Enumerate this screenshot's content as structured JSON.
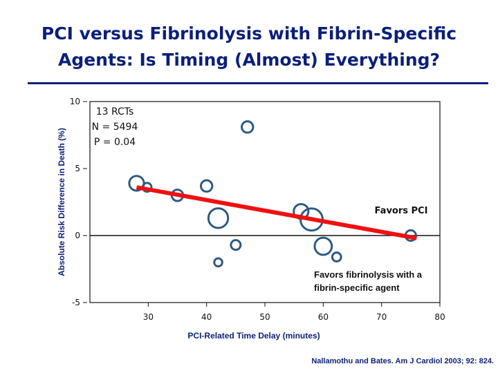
{
  "slide": {
    "title_line1": "PCI versus Fibrinolysis with Fibrin-Specific",
    "title_line2": "Agents: Is Timing (Almost) Everything?",
    "citation": "Nallamothu and Bates. Am J Cardiol 2003; 92: 824.",
    "title_color": "#0b1f7a"
  },
  "chart_data": {
    "type": "scatter",
    "xlabel": "PCI-Related Time Delay (minutes)",
    "ylabel": "Absolute Risk Difference in Death (%)",
    "xlim": [
      20,
      80
    ],
    "ylim": [
      -5,
      10
    ],
    "x_ticks": [
      30,
      40,
      50,
      60,
      70,
      80
    ],
    "y_ticks": [
      10,
      5,
      0,
      -5
    ],
    "grid": false,
    "marker_color": "#2e5a84",
    "points": [
      {
        "x": 47,
        "y": 8.1,
        "size": 0.35
      },
      {
        "x": 28,
        "y": 3.9,
        "size": 0.55
      },
      {
        "x": 29.8,
        "y": 3.6,
        "size": 0.2
      },
      {
        "x": 35,
        "y": 3.0,
        "size": 0.35
      },
      {
        "x": 40,
        "y": 3.7,
        "size": 0.35
      },
      {
        "x": 42,
        "y": 1.3,
        "size": 0.85
      },
      {
        "x": 45,
        "y": -0.7,
        "size": 0.25
      },
      {
        "x": 42,
        "y": -2.0,
        "size": 0.15
      },
      {
        "x": 56.2,
        "y": 1.8,
        "size": 0.55
      },
      {
        "x": 58,
        "y": 1.2,
        "size": 1.0
      },
      {
        "x": 60,
        "y": -0.8,
        "size": 0.7
      },
      {
        "x": 62.3,
        "y": -1.6,
        "size": 0.2
      },
      {
        "x": 75,
        "y": 0.0,
        "size": 0.3
      }
    ],
    "trend_line": {
      "x": [
        28,
        76
      ],
      "y": [
        3.6,
        -0.2
      ],
      "color": "#ee1111"
    },
    "annotations": {
      "stats": [
        "13 RCTs",
        "N = 5494",
        "P = 0.04"
      ],
      "favors_pci": "Favors PCI",
      "favors_fib": [
        "Favors fibrinolysis with a",
        "fibrin-specific agent"
      ]
    }
  }
}
